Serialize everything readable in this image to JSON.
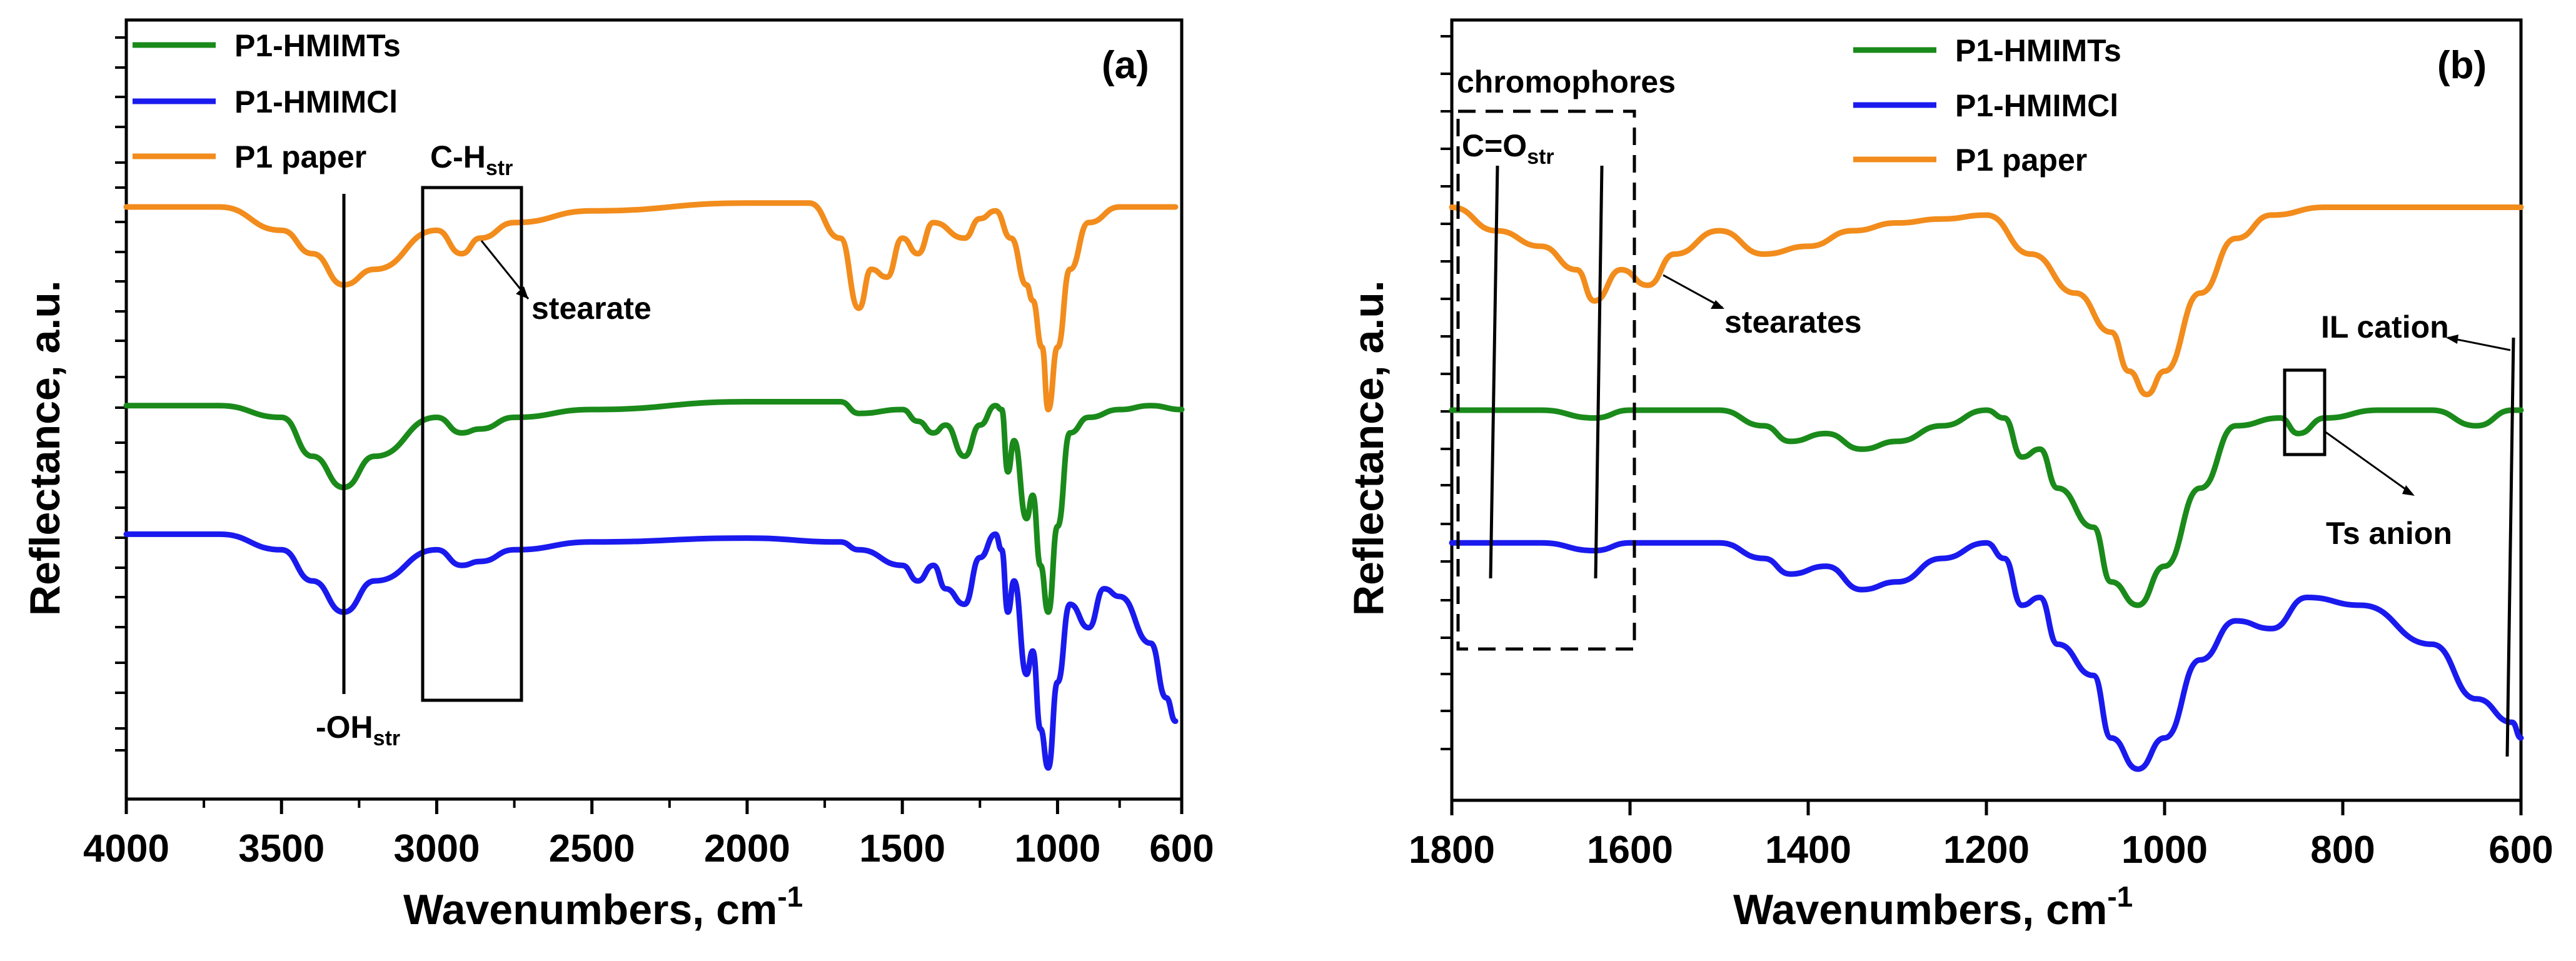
{
  "figure": {
    "description_panels": 2
  },
  "chart_data": [
    {
      "type": "line",
      "panel_label": "(a)",
      "xlabel": "Wavenumbers, cm",
      "xlabel_sup": "-1",
      "ylabel": "Reflectance, a.u.",
      "xlim": [
        4000,
        600
      ],
      "ylim": [
        0,
        1
      ],
      "x_ticks": [
        4000,
        3500,
        3000,
        2500,
        2000,
        1500,
        1000,
        600
      ],
      "x_tick_labels": [
        "4000",
        "3500",
        "3000",
        "2500",
        "2000",
        "1500",
        "1000",
        "600"
      ],
      "legend": [
        "P1-HMIMTs",
        "P1-HMIMCl",
        "P1 paper"
      ],
      "series": [
        {
          "name": "P1-HMIMTs",
          "color": "#1a8a1a",
          "points": [
            [
              4000,
              0.505
            ],
            [
              3700,
              0.505
            ],
            [
              3500,
              0.49
            ],
            [
              3400,
              0.44
            ],
            [
              3300,
              0.4
            ],
            [
              3200,
              0.44
            ],
            [
              3000,
              0.49
            ],
            [
              2920,
              0.47
            ],
            [
              2860,
              0.475
            ],
            [
              2750,
              0.49
            ],
            [
              2500,
              0.5
            ],
            [
              2000,
              0.51
            ],
            [
              1700,
              0.51
            ],
            [
              1640,
              0.495
            ],
            [
              1500,
              0.5
            ],
            [
              1450,
              0.485
            ],
            [
              1400,
              0.47
            ],
            [
              1360,
              0.48
            ],
            [
              1300,
              0.44
            ],
            [
              1250,
              0.48
            ],
            [
              1200,
              0.505
            ],
            [
              1180,
              0.5
            ],
            [
              1160,
              0.42
            ],
            [
              1140,
              0.46
            ],
            [
              1100,
              0.36
            ],
            [
              1080,
              0.39
            ],
            [
              1055,
              0.3
            ],
            [
              1030,
              0.24
            ],
            [
              1000,
              0.35
            ],
            [
              960,
              0.47
            ],
            [
              900,
              0.49
            ],
            [
              800,
              0.5
            ],
            [
              700,
              0.505
            ],
            [
              600,
              0.5
            ]
          ]
        },
        {
          "name": "P1-HMIMCl",
          "color": "#1a1aee",
          "points": [
            [
              4000,
              0.34
            ],
            [
              3700,
              0.34
            ],
            [
              3500,
              0.32
            ],
            [
              3400,
              0.28
            ],
            [
              3300,
              0.24
            ],
            [
              3200,
              0.28
            ],
            [
              3000,
              0.32
            ],
            [
              2920,
              0.3
            ],
            [
              2860,
              0.305
            ],
            [
              2750,
              0.32
            ],
            [
              2500,
              0.33
            ],
            [
              2000,
              0.335
            ],
            [
              1700,
              0.33
            ],
            [
              1640,
              0.32
            ],
            [
              1500,
              0.3
            ],
            [
              1450,
              0.28
            ],
            [
              1400,
              0.3
            ],
            [
              1360,
              0.27
            ],
            [
              1300,
              0.25
            ],
            [
              1250,
              0.31
            ],
            [
              1200,
              0.34
            ],
            [
              1180,
              0.32
            ],
            [
              1160,
              0.24
            ],
            [
              1140,
              0.28
            ],
            [
              1100,
              0.16
            ],
            [
              1080,
              0.19
            ],
            [
              1055,
              0.09
            ],
            [
              1030,
              0.04
            ],
            [
              1000,
              0.15
            ],
            [
              960,
              0.25
            ],
            [
              900,
              0.22
            ],
            [
              850,
              0.27
            ],
            [
              800,
              0.26
            ],
            [
              700,
              0.2
            ],
            [
              650,
              0.13
            ],
            [
              620,
              0.1
            ]
          ]
        },
        {
          "name": "P1 paper",
          "color": "#f28c1c",
          "points": [
            [
              4000,
              0.76
            ],
            [
              3700,
              0.76
            ],
            [
              3500,
              0.73
            ],
            [
              3400,
              0.7
            ],
            [
              3300,
              0.66
            ],
            [
              3200,
              0.68
            ],
            [
              3000,
              0.73
            ],
            [
              2920,
              0.7
            ],
            [
              2860,
              0.72
            ],
            [
              2750,
              0.74
            ],
            [
              2500,
              0.755
            ],
            [
              2000,
              0.765
            ],
            [
              1800,
              0.765
            ],
            [
              1700,
              0.72
            ],
            [
              1640,
              0.63
            ],
            [
              1600,
              0.68
            ],
            [
              1550,
              0.67
            ],
            [
              1500,
              0.72
            ],
            [
              1450,
              0.7
            ],
            [
              1400,
              0.74
            ],
            [
              1300,
              0.72
            ],
            [
              1250,
              0.745
            ],
            [
              1200,
              0.755
            ],
            [
              1150,
              0.72
            ],
            [
              1100,
              0.66
            ],
            [
              1080,
              0.64
            ],
            [
              1050,
              0.58
            ],
            [
              1030,
              0.5
            ],
            [
              1000,
              0.58
            ],
            [
              960,
              0.68
            ],
            [
              900,
              0.74
            ],
            [
              800,
              0.76
            ],
            [
              700,
              0.76
            ],
            [
              620,
              0.76
            ]
          ]
        }
      ],
      "annotations": {
        "oh": "-OH",
        "oh_sub": "str",
        "ch": "C-H",
        "ch_sub": "str",
        "stearate": "stearate"
      }
    },
    {
      "type": "line",
      "panel_label": "(b)",
      "xlabel": "Wavenumbers, cm",
      "xlabel_sup": "-1",
      "ylabel": "Reflectance, a.u.",
      "xlim": [
        1800,
        600
      ],
      "ylim": [
        0,
        1
      ],
      "x_ticks": [
        1800,
        1600,
        1400,
        1200,
        1000,
        800,
        600
      ],
      "x_tick_labels": [
        "1800",
        "1600",
        "1400",
        "1200",
        "1000",
        "800",
        "600"
      ],
      "legend": [
        "P1-HMIMTs",
        "P1-HMIMCl",
        "P1 paper"
      ],
      "series": [
        {
          "name": "P1-HMIMTs",
          "color": "#1a8a1a",
          "points": [
            [
              1800,
              0.5
            ],
            [
              1700,
              0.5
            ],
            [
              1640,
              0.49
            ],
            [
              1600,
              0.5
            ],
            [
              1500,
              0.5
            ],
            [
              1450,
              0.48
            ],
            [
              1420,
              0.46
            ],
            [
              1380,
              0.47
            ],
            [
              1340,
              0.45
            ],
            [
              1300,
              0.46
            ],
            [
              1250,
              0.48
            ],
            [
              1200,
              0.5
            ],
            [
              1180,
              0.49
            ],
            [
              1160,
              0.44
            ],
            [
              1140,
              0.45
            ],
            [
              1120,
              0.4
            ],
            [
              1080,
              0.35
            ],
            [
              1060,
              0.28
            ],
            [
              1030,
              0.25
            ],
            [
              1000,
              0.3
            ],
            [
              960,
              0.4
            ],
            [
              920,
              0.48
            ],
            [
              870,
              0.49
            ],
            [
              850,
              0.47
            ],
            [
              820,
              0.49
            ],
            [
              760,
              0.5
            ],
            [
              700,
              0.5
            ],
            [
              650,
              0.48
            ],
            [
              610,
              0.5
            ],
            [
              600,
              0.5
            ]
          ]
        },
        {
          "name": "P1-HMIMCl",
          "color": "#1a1aee",
          "points": [
            [
              1800,
              0.33
            ],
            [
              1700,
              0.33
            ],
            [
              1640,
              0.32
            ],
            [
              1600,
              0.33
            ],
            [
              1500,
              0.33
            ],
            [
              1450,
              0.31
            ],
            [
              1420,
              0.29
            ],
            [
              1380,
              0.3
            ],
            [
              1340,
              0.27
            ],
            [
              1300,
              0.28
            ],
            [
              1250,
              0.31
            ],
            [
              1200,
              0.33
            ],
            [
              1180,
              0.31
            ],
            [
              1160,
              0.25
            ],
            [
              1140,
              0.26
            ],
            [
              1120,
              0.2
            ],
            [
              1080,
              0.16
            ],
            [
              1060,
              0.08
            ],
            [
              1030,
              0.04
            ],
            [
              1000,
              0.08
            ],
            [
              960,
              0.18
            ],
            [
              920,
              0.23
            ],
            [
              880,
              0.22
            ],
            [
              840,
              0.26
            ],
            [
              780,
              0.25
            ],
            [
              700,
              0.2
            ],
            [
              650,
              0.13
            ],
            [
              610,
              0.1
            ],
            [
              600,
              0.08
            ]
          ]
        },
        {
          "name": "P1 paper",
          "color": "#f28c1c",
          "points": [
            [
              1800,
              0.76
            ],
            [
              1750,
              0.73
            ],
            [
              1700,
              0.71
            ],
            [
              1660,
              0.68
            ],
            [
              1640,
              0.64
            ],
            [
              1610,
              0.68
            ],
            [
              1580,
              0.66
            ],
            [
              1550,
              0.7
            ],
            [
              1500,
              0.73
            ],
            [
              1450,
              0.7
            ],
            [
              1400,
              0.71
            ],
            [
              1350,
              0.73
            ],
            [
              1300,
              0.74
            ],
            [
              1250,
              0.745
            ],
            [
              1200,
              0.75
            ],
            [
              1150,
              0.7
            ],
            [
              1100,
              0.65
            ],
            [
              1060,
              0.6
            ],
            [
              1040,
              0.55
            ],
            [
              1020,
              0.52
            ],
            [
              1000,
              0.55
            ],
            [
              960,
              0.65
            ],
            [
              920,
              0.72
            ],
            [
              880,
              0.75
            ],
            [
              820,
              0.76
            ],
            [
              700,
              0.76
            ],
            [
              600,
              0.76
            ]
          ]
        }
      ],
      "annotations": {
        "chromophores": "chromophores",
        "co": "C=O",
        "co_sub": "str",
        "stearates": "stearates",
        "il_cation": "IL cation",
        "ts_anion": "Ts anion"
      }
    }
  ]
}
